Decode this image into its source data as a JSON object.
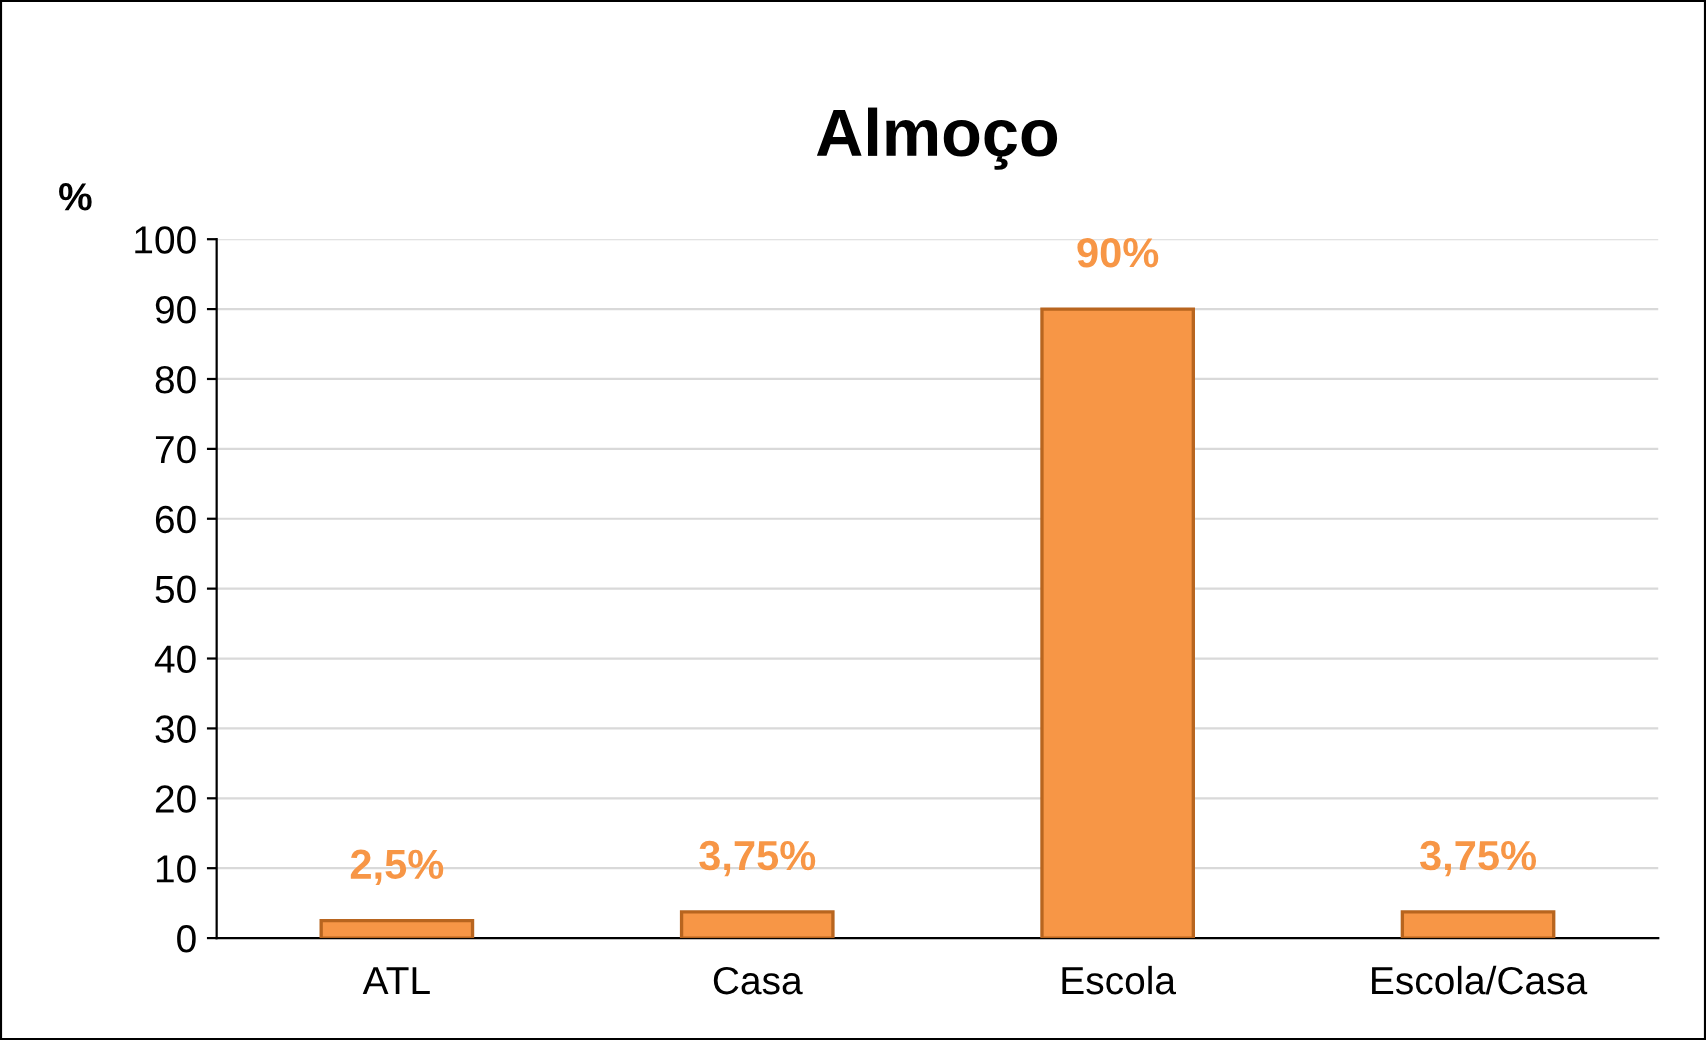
{
  "chart_data": {
    "type": "bar",
    "title": "Almoço",
    "ylabel": "%",
    "categories": [
      "ATL",
      "Casa",
      "Escola",
      "Escola/Casa"
    ],
    "values": [
      2.5,
      3.75,
      90,
      3.75
    ],
    "value_labels": [
      "2,5%",
      "3,75%",
      "90%",
      "3,75%"
    ],
    "color": "#f79646",
    "ylim": [
      0,
      100
    ],
    "yticks": [
      0,
      10,
      20,
      30,
      40,
      50,
      60,
      70,
      80,
      90,
      100
    ],
    "grid": "y"
  }
}
